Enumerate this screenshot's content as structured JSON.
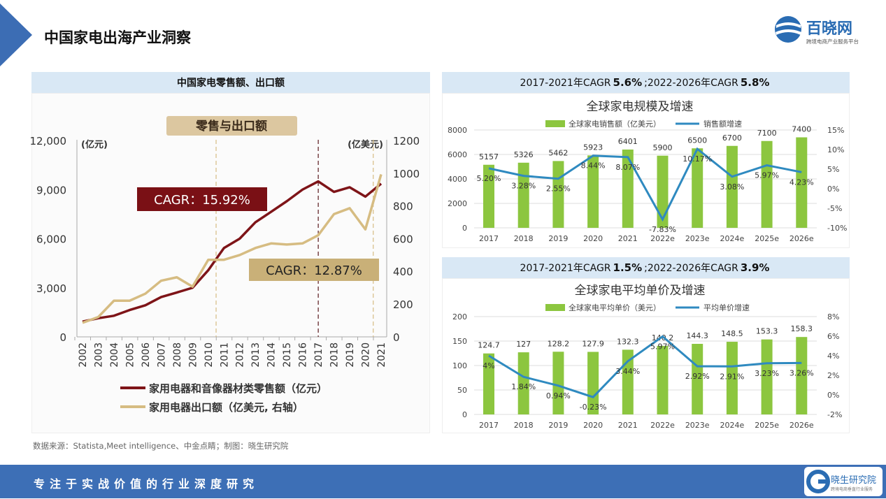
{
  "header": {
    "title": "中国家电出海产业洞察",
    "logo": {
      "name": "百晓网",
      "tagline": "跨境电商产业服务平台",
      "color": "#2a6cb3"
    }
  },
  "left_panel": {
    "header": "中国家电零售额、出口额"
  },
  "right_panel_1": {
    "header_a": "2017-2021年CAGR",
    "header_b": "5.6%",
    "header_c": ";2022-2026年CAGR",
    "header_d": "5.8%"
  },
  "right_panel_2": {
    "header_a": "2017-2021年CAGR",
    "header_b": "1.5%",
    "header_c": ";2022-2026年CAGR",
    "header_d": "3.9%"
  },
  "source": "数据来源：Statista,Meet intelligence、中金点睛；制图：晓生研究院",
  "footer": {
    "slogan": "专注于实战价值的行业深度研究",
    "logo": {
      "name": "晓生研究院",
      "tagline": "跨境电商垂直行业服务",
      "color": "#2a6cb3"
    }
  },
  "chart_data": [
    {
      "type": "line",
      "title": "零售与出口额",
      "left_unit": "(亿元)",
      "right_unit": "(亿美元)",
      "categories": [
        "2002",
        "2003",
        "2004",
        "2005",
        "2006",
        "2007",
        "2008",
        "2009",
        "2010",
        "2011",
        "2012",
        "2013",
        "2014",
        "2015",
        "2016",
        "2017",
        "2018",
        "2019",
        "2020",
        "2021"
      ],
      "left_ticks": [
        "12,000",
        "9,000",
        "6,000",
        "3,000",
        "0"
      ],
      "right_ticks": [
        "1200",
        "1000",
        "800",
        "600",
        "400",
        "200",
        "0"
      ],
      "ylim_left": [
        0,
        12000
      ],
      "ylim_right": [
        0,
        1200
      ],
      "series": [
        {
          "name": "家用电器和音像器材类零售额（亿元）",
          "axis": "left",
          "color": "#7e1418",
          "values": [
            930,
            1140,
            1290,
            1640,
            1930,
            2430,
            2710,
            3000,
            4070,
            5430,
            6000,
            7000,
            7640,
            8290,
            9000,
            9500,
            8860,
            9140,
            8570,
            9360
          ]
        },
        {
          "name": "家用电器出口额（亿美元, 右轴）",
          "axis": "right",
          "color": "#d6bc82",
          "values": [
            86,
            121,
            221,
            221,
            264,
            343,
            364,
            307,
            471,
            471,
            500,
            543,
            571,
            564,
            571,
            621,
            750,
            786,
            657,
            993
          ]
        }
      ],
      "annotations": [
        {
          "text": "CAGR：15.92%",
          "color": "#7a1015"
        },
        {
          "text": "CAGR：12.87%",
          "color": "#c9b078"
        }
      ],
      "reference_lines": [
        2010.5,
        2017,
        2020.5
      ],
      "legend": "bottom"
    },
    {
      "type": "bar+line",
      "title": "全球家电规模及增速",
      "categories": [
        "2017",
        "2018",
        "2019",
        "2020",
        "2021",
        "2022e",
        "2023e",
        "2024e",
        "2025e",
        "2026e"
      ],
      "left_ticks": [
        "8000",
        "6000",
        "4000",
        "2000",
        "0"
      ],
      "right_ticks": [
        "15%",
        "10%",
        "5%",
        "0%",
        "-5%",
        "-10%"
      ],
      "ylim_left": [
        0,
        8000
      ],
      "ylim_right": [
        -10,
        15
      ],
      "series": [
        {
          "name": "全球家电销售额（亿美元）",
          "type": "bar",
          "color": "#8cc63f",
          "values": [
            5157,
            5326,
            5462,
            5923,
            6401,
            5900,
            6500,
            6700,
            7100,
            7400
          ]
        },
        {
          "name": "销售额增速",
          "type": "line",
          "color": "#2f8ac0",
          "values": [
            5.2,
            3.28,
            2.55,
            8.44,
            8.07,
            -7.83,
            10.17,
            3.08,
            5.97,
            4.23
          ],
          "labels": [
            "5.20%",
            "3.28%",
            "2.55%",
            "8.44%",
            "8.07%",
            "-7.83%",
            "10.17%",
            "3.08%",
            "5.97%",
            "4.23%"
          ]
        }
      ],
      "legend": "top"
    },
    {
      "type": "bar+line",
      "title": "全球家电平均单价及增速",
      "categories": [
        "2017",
        "2018",
        "2019",
        "2020",
        "2021",
        "2022e",
        "2023e",
        "2024e",
        "2025e",
        "2026e"
      ],
      "left_ticks": [
        "200",
        "150",
        "100",
        "50",
        "0"
      ],
      "right_ticks": [
        "8%",
        "6%",
        "4%",
        "2%",
        "0%",
        "-2%"
      ],
      "ylim_left": [
        0,
        200
      ],
      "ylim_right": [
        -2,
        8
      ],
      "series": [
        {
          "name": "全球家电平均单价（美元）",
          "type": "bar",
          "color": "#8cc63f",
          "values": [
            124.7,
            127,
            128.2,
            127.9,
            132.3,
            140.2,
            144.3,
            148.5,
            153.3,
            158.3
          ],
          "labels": [
            "124.7",
            "127",
            "128.2",
            "127.9",
            "132.3",
            "140.2",
            "144.3",
            "148.5",
            "153.3",
            "158.3"
          ]
        },
        {
          "name": "平均单价增速",
          "type": "line",
          "color": "#2f8ac0",
          "values": [
            4,
            1.84,
            0.94,
            -0.23,
            3.44,
            5.97,
            2.92,
            2.91,
            3.23,
            3.26
          ],
          "labels": [
            "4%",
            "1.84%",
            "0.94%",
            "-0.23%",
            "3.44%",
            "5.97%",
            "2.92%",
            "2.91%",
            "3.23%",
            "3.26%"
          ]
        }
      ],
      "legend": "top"
    }
  ]
}
